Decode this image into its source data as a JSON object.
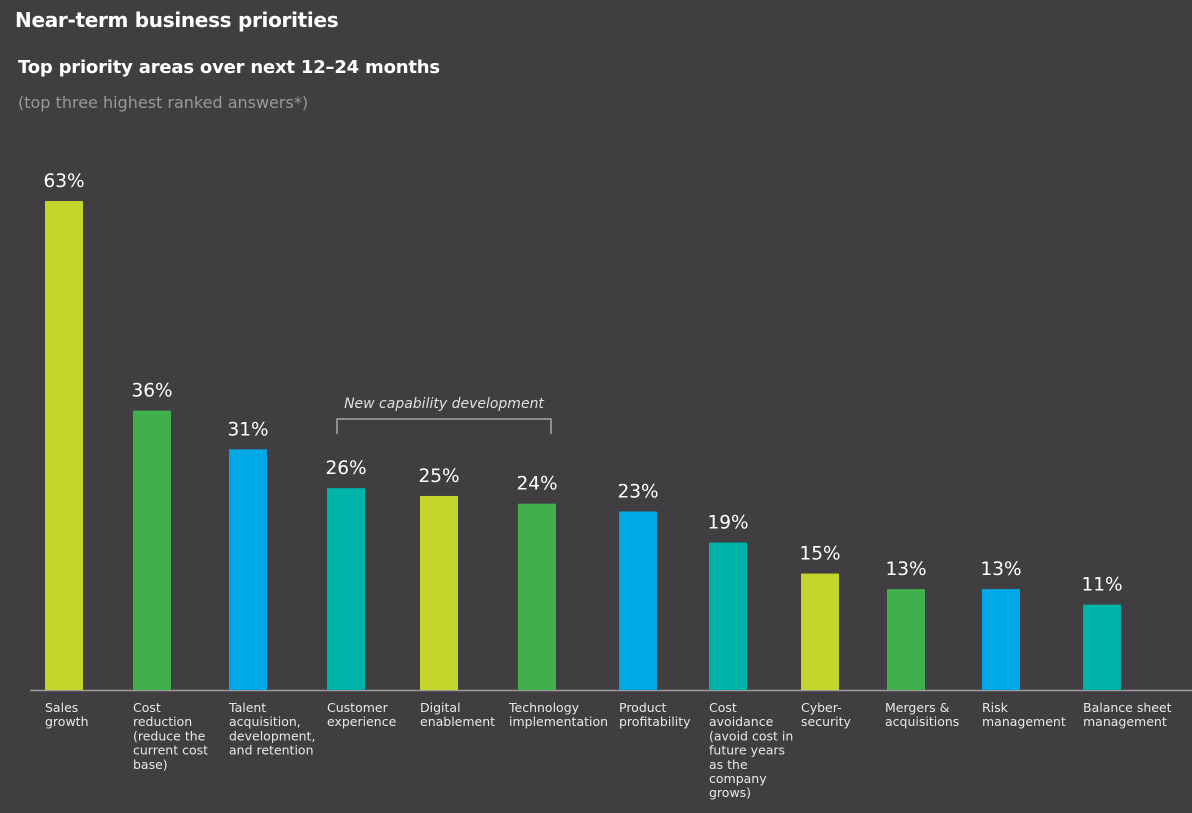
{
  "header": {
    "title": "Near-term business priorities",
    "subtitle": "Top priority areas over next 12–24 months",
    "note": "(top three highest ranked answers*)"
  },
  "chart_data": {
    "type": "bar",
    "title": "Top priority areas over next 12–24 months",
    "subtitle": "(top three highest ranked answers*)",
    "xlabel": "",
    "ylabel": "",
    "ylim": [
      0,
      63
    ],
    "grid": false,
    "value_suffix": "%",
    "categories": [
      [
        "Sales",
        "growth"
      ],
      [
        "Cost",
        "reduction",
        "(reduce the",
        "current cost",
        "base)"
      ],
      [
        "Talent",
        "acquisition,",
        "development,",
        "and retention"
      ],
      [
        "Customer",
        "experience"
      ],
      [
        "Digital",
        "enablement"
      ],
      [
        "Technology",
        "implementation"
      ],
      [
        "Product",
        "profitability"
      ],
      [
        "Cost",
        "avoidance",
        "(avoid cost in",
        "future years",
        "as the",
        "company",
        "grows)"
      ],
      [
        "Cyber-",
        "security"
      ],
      [
        "Mergers &",
        "acquisitions"
      ],
      [
        "Risk",
        "management"
      ],
      [
        "Balance sheet",
        "management"
      ]
    ],
    "values": [
      63,
      36,
      31,
      26,
      25,
      24,
      23,
      19,
      15,
      13,
      13,
      11
    ],
    "value_labels": [
      "63%",
      "36%",
      "31%",
      "26%",
      "25%",
      "24%",
      "23%",
      "19%",
      "15%",
      "13%",
      "13%",
      "11%"
    ],
    "colors": [
      "#c4d52b",
      "#3fb04b",
      "#00a9e6",
      "#00b3a9",
      "#c4d52b",
      "#3fb04b",
      "#00a9e6",
      "#00b3a9",
      "#c4d52b",
      "#3fb04b",
      "#00a9e6",
      "#00b3a9"
    ],
    "annotations": [
      {
        "text": "New capability development",
        "span_categories": [
          3,
          5
        ],
        "type": "bracket"
      }
    ]
  },
  "colors": {
    "background": "#403e41",
    "axis": "#9c9a9c",
    "lime": "#c4d52b",
    "green": "#3fb04b",
    "blue": "#00a9e6",
    "teal": "#00b3a9"
  }
}
